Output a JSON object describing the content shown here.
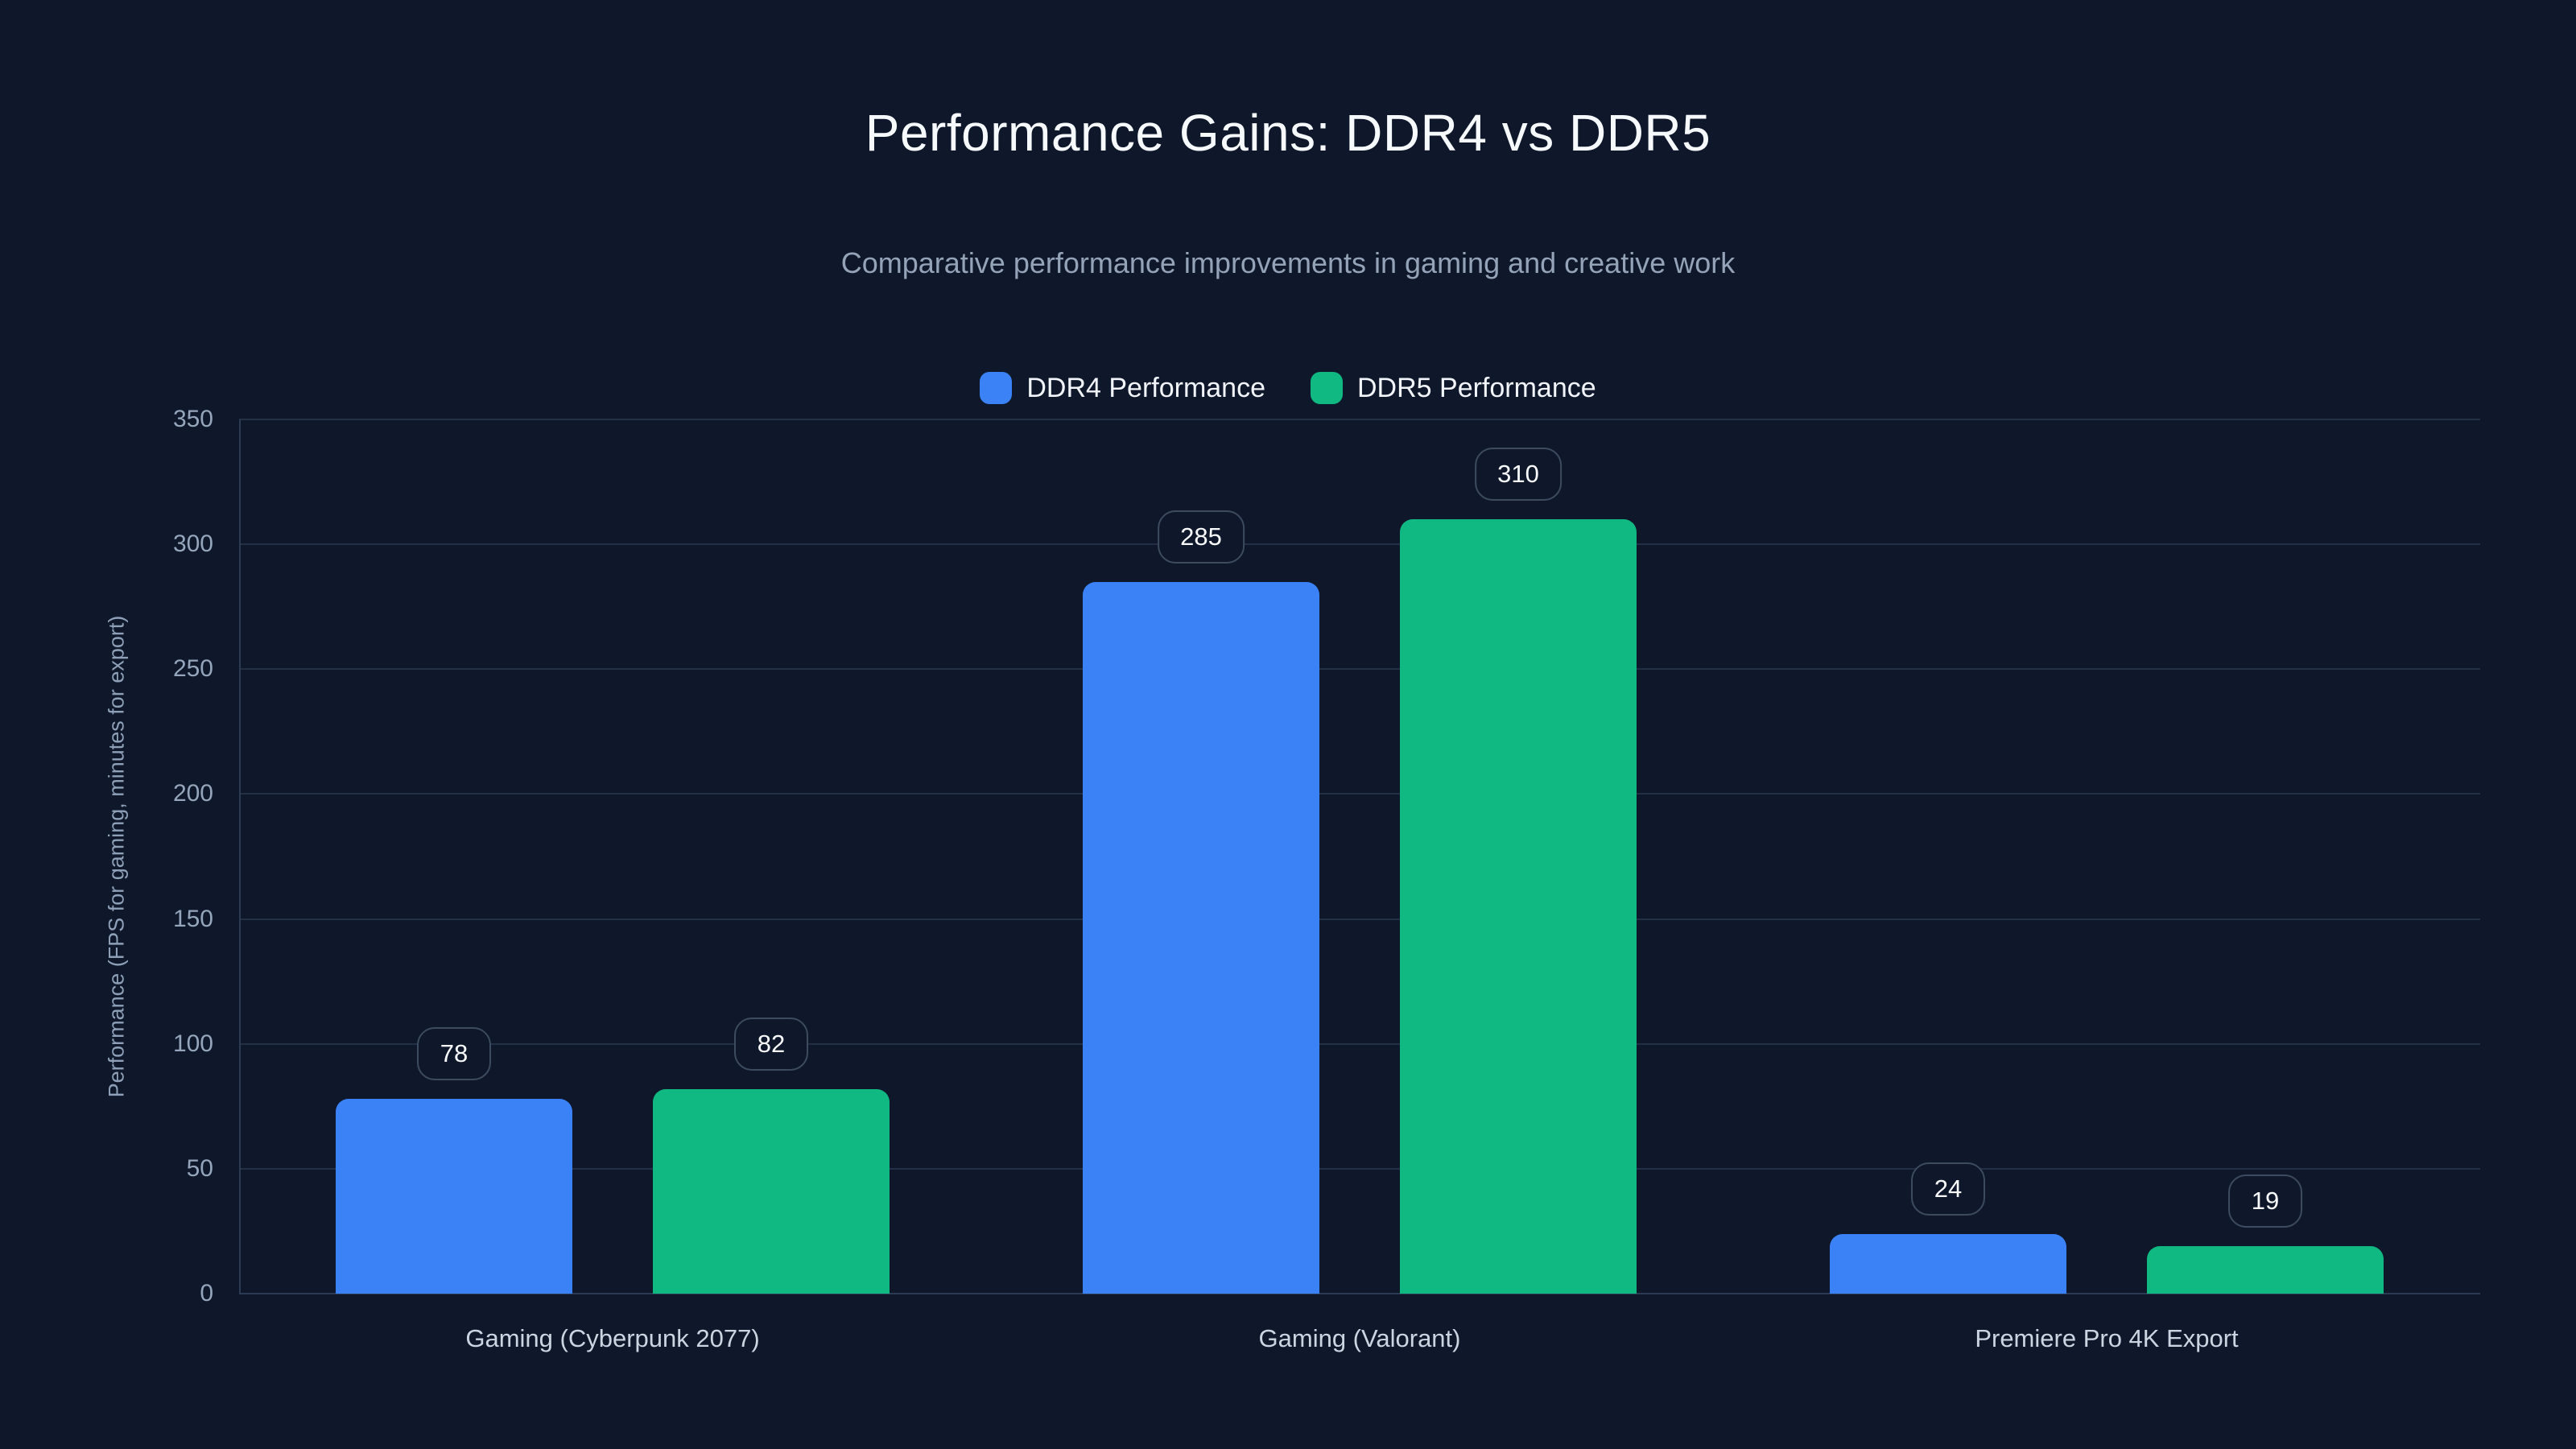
{
  "header": {
    "title": "Performance Gains: DDR4 vs DDR5",
    "subtitle": "Comparative performance improvements in gaming and creative work"
  },
  "chart_data": {
    "type": "bar",
    "title": "Performance Gains: DDR4 vs DDR5",
    "subtitle": "Comparative performance improvements in gaming and creative work",
    "categories": [
      "Gaming (Cyberpunk 2077)",
      "Gaming (Valorant)",
      "Premiere Pro 4K Export"
    ],
    "series": [
      {
        "name": "DDR4 Performance",
        "color": "#3b82f6",
        "values": [
          78,
          285,
          24
        ]
      },
      {
        "name": "DDR5 Performance",
        "color": "#10b981",
        "values": [
          82,
          310,
          19
        ]
      }
    ],
    "value_labels": [
      [
        78,
        285,
        24
      ],
      [
        82,
        310,
        19
      ]
    ],
    "ylabel": "Performance (FPS for gaming, minutes for export)",
    "ylim": [
      0,
      350
    ],
    "yticks": [
      0,
      50,
      100,
      150,
      200,
      250,
      300,
      350
    ],
    "grid": true,
    "legend_position": "top",
    "background_color": "#0f172a",
    "gridline_color": "#222f45",
    "badge_border_color": "#3c4b60",
    "title_color": "#f7fafc",
    "subtitle_color": "#94a3b8"
  }
}
